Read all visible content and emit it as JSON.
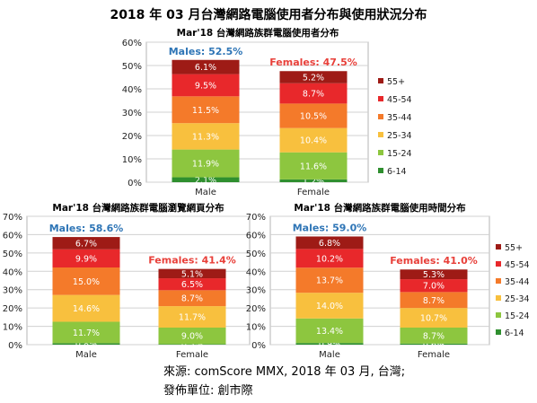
{
  "title": "2018 年 03 月台灣網路電腦使用者分布與使用狀況分布",
  "source_line1": "來源: comScore MMX, 2018 年 03 月, 台灣;",
  "source_line2": "發佈單位: 創市際",
  "colors": {
    "55+": "#9e1b16",
    "45-54": "#e8282b",
    "35-44": "#f47a2a",
    "25-34": "#f8c03e",
    "15-24": "#8dc63f",
    "6-14": "#2f8f2f",
    "male_label": "#2e75b6",
    "female_label": "#e8403a"
  },
  "chart_data": [
    {
      "type": "bar",
      "stacked": true,
      "title": "Mar'18 台灣網路族群電腦使用者分布",
      "categories": [
        "Male",
        "Female"
      ],
      "top_labels": [
        "Males: 52.5%",
        "Females: 47.5%"
      ],
      "ylim": [
        0,
        60
      ],
      "yticks": [
        0,
        10,
        20,
        30,
        40,
        50,
        60
      ],
      "series": [
        {
          "name": "6-14",
          "values": [
            2.1,
            1.2
          ]
        },
        {
          "name": "15-24",
          "values": [
            11.9,
            11.6
          ]
        },
        {
          "name": "25-34",
          "values": [
            11.3,
            10.4
          ]
        },
        {
          "name": "35-44",
          "values": [
            11.5,
            10.5
          ]
        },
        {
          "name": "45-54",
          "values": [
            9.5,
            8.7
          ]
        },
        {
          "name": "55+",
          "values": [
            6.1,
            5.2
          ]
        }
      ],
      "legend": "right"
    },
    {
      "type": "bar",
      "stacked": true,
      "title": "Mar'18 台灣網路族群電腦瀏覽網頁分布",
      "categories": [
        "Male",
        "Female"
      ],
      "top_labels": [
        "Males: 58.6%",
        "Females: 41.4%"
      ],
      "ylim": [
        0,
        70
      ],
      "yticks": [
        0,
        10,
        20,
        30,
        40,
        50,
        60,
        70
      ],
      "series": [
        {
          "name": "6-14",
          "values": [
            0.8,
            0.3
          ]
        },
        {
          "name": "15-24",
          "values": [
            11.7,
            9.0
          ]
        },
        {
          "name": "25-34",
          "values": [
            14.6,
            11.7
          ]
        },
        {
          "name": "35-44",
          "values": [
            15.0,
            8.7
          ]
        },
        {
          "name": "45-54",
          "values": [
            9.9,
            6.5
          ]
        },
        {
          "name": "55+",
          "values": [
            6.7,
            5.1
          ]
        }
      ]
    },
    {
      "type": "bar",
      "stacked": true,
      "title": "Mar'18 台灣網路族群電腦使用時間分布",
      "categories": [
        "Male",
        "Female"
      ],
      "top_labels": [
        "Males: 59.0%",
        "Females: 41.0%"
      ],
      "ylim": [
        0,
        70
      ],
      "yticks": [
        0,
        10,
        20,
        30,
        40,
        50,
        60,
        70
      ],
      "series": [
        {
          "name": "6-14",
          "values": [
            0.9,
            0.6
          ]
        },
        {
          "name": "15-24",
          "values": [
            13.4,
            8.7
          ]
        },
        {
          "name": "25-34",
          "values": [
            14.0,
            10.7
          ]
        },
        {
          "name": "35-44",
          "values": [
            13.7,
            8.7
          ]
        },
        {
          "name": "45-54",
          "values": [
            10.2,
            7.0
          ]
        },
        {
          "name": "55+",
          "values": [
            6.8,
            5.3
          ]
        }
      ],
      "legend": "right"
    }
  ]
}
